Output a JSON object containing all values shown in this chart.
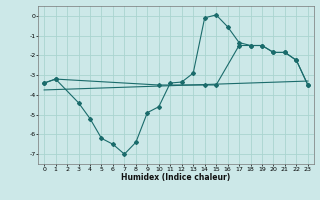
{
  "title": "",
  "xlabel": "Humidex (Indice chaleur)",
  "bg_color": "#cce8e8",
  "grid_color": "#aad4d0",
  "line_color": "#1a6b6b",
  "xlim": [
    -0.5,
    23.5
  ],
  "ylim": [
    -7.5,
    0.5
  ],
  "yticks": [
    0,
    -1,
    -2,
    -3,
    -4,
    -5,
    -6,
    -7
  ],
  "xticks": [
    0,
    1,
    2,
    3,
    4,
    5,
    6,
    7,
    8,
    9,
    10,
    11,
    12,
    13,
    14,
    15,
    16,
    17,
    18,
    19,
    20,
    21,
    22,
    23
  ],
  "series1_x": [
    0,
    1,
    3,
    4,
    5,
    6,
    7,
    8,
    9,
    10,
    11,
    12,
    13,
    14,
    15,
    16,
    17,
    18,
    19,
    20,
    21,
    22,
    23
  ],
  "series1_y": [
    -3.4,
    -3.2,
    -4.4,
    -5.2,
    -6.2,
    -6.5,
    -7.0,
    -6.4,
    -4.9,
    -4.6,
    -3.4,
    -3.35,
    -2.9,
    -0.1,
    0.05,
    -0.55,
    -1.35,
    -1.5,
    -1.5,
    -1.85,
    -1.85,
    -2.25,
    -3.5
  ],
  "series2_x": [
    0,
    1,
    10,
    14,
    15,
    17,
    18,
    19,
    20,
    21,
    22,
    23
  ],
  "series2_y": [
    -3.4,
    -3.2,
    -3.5,
    -3.5,
    -3.5,
    -1.5,
    -1.5,
    -1.5,
    -1.85,
    -1.85,
    -2.25,
    -3.5
  ],
  "series3_x": [
    0,
    23
  ],
  "series3_y": [
    -3.75,
    -3.3
  ]
}
